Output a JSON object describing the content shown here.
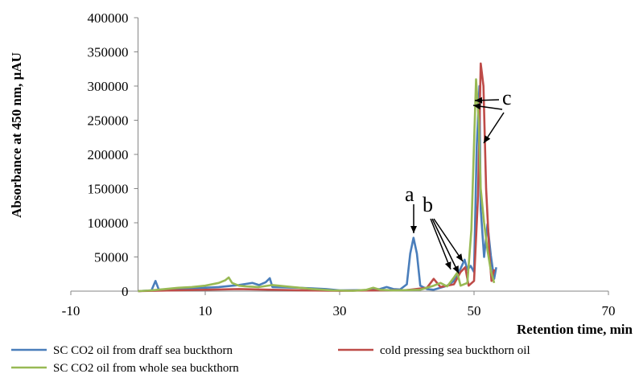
{
  "chart_data": {
    "type": "line",
    "xlabel": "Retention time, min",
    "ylabel": "Absorbance at 450 nm, µAU",
    "xlim": [
      -10,
      70
    ],
    "ylim": [
      0,
      400000
    ],
    "x_ticks": [
      -10,
      10,
      30,
      50,
      70
    ],
    "y_ticks": [
      0,
      50000,
      100000,
      150000,
      200000,
      250000,
      300000,
      350000,
      400000
    ],
    "grid": false,
    "legend_position": "bottom",
    "series": [
      {
        "name": "SC CO2 oil from draff sea buckthorn",
        "color": "#4a7ebb",
        "points": [
          [
            0,
            0
          ],
          [
            2,
            1000
          ],
          [
            2.6,
            15000
          ],
          [
            3.1,
            2000
          ],
          [
            5,
            3000
          ],
          [
            8,
            4000
          ],
          [
            12,
            6000
          ],
          [
            15,
            9000
          ],
          [
            17,
            12000
          ],
          [
            18,
            9000
          ],
          [
            19,
            13000
          ],
          [
            19.6,
            19000
          ],
          [
            20,
            6000
          ],
          [
            24,
            5000
          ],
          [
            28,
            3000
          ],
          [
            30,
            1000
          ],
          [
            34,
            1500
          ],
          [
            36,
            3000
          ],
          [
            37,
            6000
          ],
          [
            38,
            3000
          ],
          [
            39,
            2500
          ],
          [
            40,
            10000
          ],
          [
            40.5,
            55000
          ],
          [
            41,
            78000
          ],
          [
            41.5,
            55000
          ],
          [
            42,
            8000
          ],
          [
            43,
            3000
          ],
          [
            44,
            2000
          ],
          [
            45,
            5000
          ],
          [
            46,
            8000
          ],
          [
            47,
            15000
          ],
          [
            48,
            33000
          ],
          [
            48.6,
            46000
          ],
          [
            49,
            31000
          ],
          [
            49.5,
            37000
          ],
          [
            50,
            28000
          ],
          [
            50.4,
            210000
          ],
          [
            50.8,
            300000
          ],
          [
            51,
            120000
          ],
          [
            51.5,
            50000
          ],
          [
            52,
            98000
          ],
          [
            52.5,
            52000
          ],
          [
            53,
            18000
          ],
          [
            53.3,
            35000
          ]
        ]
      },
      {
        "name": "cold pressing sea buckthorn oil",
        "color": "#be4b48",
        "points": [
          [
            0,
            0
          ],
          [
            5,
            1000
          ],
          [
            10,
            2000
          ],
          [
            15,
            3000
          ],
          [
            20,
            2000
          ],
          [
            25,
            1000
          ],
          [
            30,
            500
          ],
          [
            35,
            1000
          ],
          [
            40,
            1500
          ],
          [
            43,
            5000
          ],
          [
            44,
            18000
          ],
          [
            45,
            6000
          ],
          [
            46,
            8000
          ],
          [
            47,
            10000
          ],
          [
            48,
            28000
          ],
          [
            48.7,
            35000
          ],
          [
            49.2,
            8000
          ],
          [
            50,
            15000
          ],
          [
            50.6,
            140000
          ],
          [
            51,
            333000
          ],
          [
            51.4,
            300000
          ],
          [
            51.8,
            150000
          ],
          [
            52.3,
            52000
          ],
          [
            52.6,
            15000
          ],
          [
            53,
            32000
          ]
        ]
      },
      {
        "name": "SC CO2 oil from  whole sea buckthorn",
        "color": "#98b954",
        "points": [
          [
            0,
            0
          ],
          [
            2,
            1000
          ],
          [
            4,
            3000
          ],
          [
            6,
            5000
          ],
          [
            8,
            6000
          ],
          [
            10,
            8000
          ],
          [
            12,
            12000
          ],
          [
            13,
            16000
          ],
          [
            13.5,
            20000
          ],
          [
            14,
            12000
          ],
          [
            15,
            8000
          ],
          [
            16,
            7000
          ],
          [
            18,
            6000
          ],
          [
            20,
            9000
          ],
          [
            23,
            6000
          ],
          [
            26,
            3000
          ],
          [
            29,
            1000
          ],
          [
            32,
            500
          ],
          [
            34,
            2000
          ],
          [
            35,
            5000
          ],
          [
            36,
            2000
          ],
          [
            38,
            1000
          ],
          [
            40,
            1500
          ],
          [
            42,
            2000
          ],
          [
            44,
            8000
          ],
          [
            45,
            12000
          ],
          [
            46,
            7000
          ],
          [
            47,
            20000
          ],
          [
            47.5,
            27000
          ],
          [
            48,
            8000
          ],
          [
            49,
            12000
          ],
          [
            49.6,
            90000
          ],
          [
            50.3,
            310000
          ],
          [
            50.7,
            250000
          ],
          [
            51,
            150000
          ],
          [
            51.5,
            100000
          ],
          [
            52,
            60000
          ],
          [
            52.5,
            30000
          ],
          [
            53,
            12000
          ]
        ]
      }
    ],
    "annotations": [
      {
        "label": "a"
      },
      {
        "label": "b"
      },
      {
        "label": "c"
      }
    ]
  }
}
